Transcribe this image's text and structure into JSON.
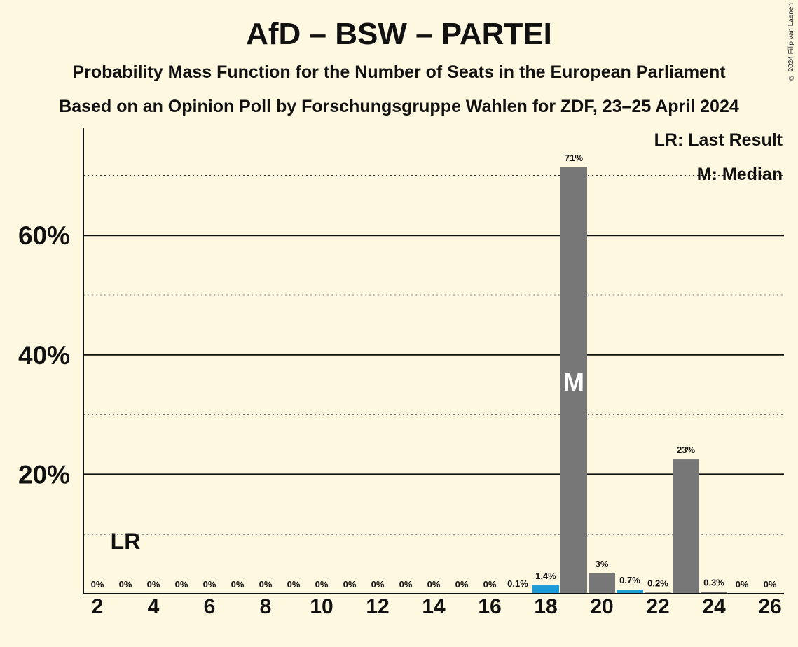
{
  "header": {
    "title": "AfD – BSW – PARTEI",
    "subtitle_1": "Probability Mass Function for the Number of Seats in the European Parliament",
    "subtitle_2": "Based on an Opinion Poll by Forschungsgruppe Wahlen for ZDF, 23–25 April 2024",
    "copyright": "© 2024 Filip van Laenen"
  },
  "legend": {
    "last_result": "LR: Last Result",
    "median": "M: Median"
  },
  "colors": {
    "background": "#FFF8E1",
    "bar_default": "#777777",
    "bar_highlight": "#1E9BD7",
    "text": "#111111"
  },
  "chart_data": {
    "type": "bar",
    "title": "AfD – BSW – PARTEI",
    "xlabel": "",
    "ylabel": "",
    "ylim": [
      0,
      78
    ],
    "x_ticks": [
      "2",
      "4",
      "6",
      "8",
      "10",
      "12",
      "14",
      "16",
      "18",
      "20",
      "22",
      "24",
      "26"
    ],
    "y_ticks": [
      "20%",
      "40%",
      "60%"
    ],
    "y_tick_values": [
      20,
      40,
      60
    ],
    "y_dotted_values": [
      10,
      30,
      50,
      70
    ],
    "categories": [
      2,
      3,
      4,
      5,
      6,
      7,
      8,
      9,
      10,
      11,
      12,
      13,
      14,
      15,
      16,
      17,
      18,
      19,
      20,
      21,
      22,
      23,
      24,
      25,
      26
    ],
    "values": [
      0,
      0,
      0,
      0,
      0,
      0,
      0,
      0,
      0,
      0,
      0,
      0,
      0,
      0,
      0,
      0.1,
      1.4,
      71.4,
      3.4,
      0.7,
      0.2,
      22.5,
      0.3,
      0,
      0
    ],
    "labels": [
      "0%",
      "0%",
      "0%",
      "0%",
      "0%",
      "0%",
      "0%",
      "0%",
      "0%",
      "0%",
      "0%",
      "0%",
      "0%",
      "0%",
      "0%",
      "0.1%",
      "1.4%",
      "71%",
      "3%",
      "0.7%",
      "0.2%",
      "23%",
      "0.3%",
      "0%",
      "0%"
    ],
    "highlight_seats": [
      18,
      21
    ],
    "last_result": {
      "seat": 3,
      "label": "LR"
    },
    "median": {
      "seat": 19,
      "label": "M"
    }
  }
}
